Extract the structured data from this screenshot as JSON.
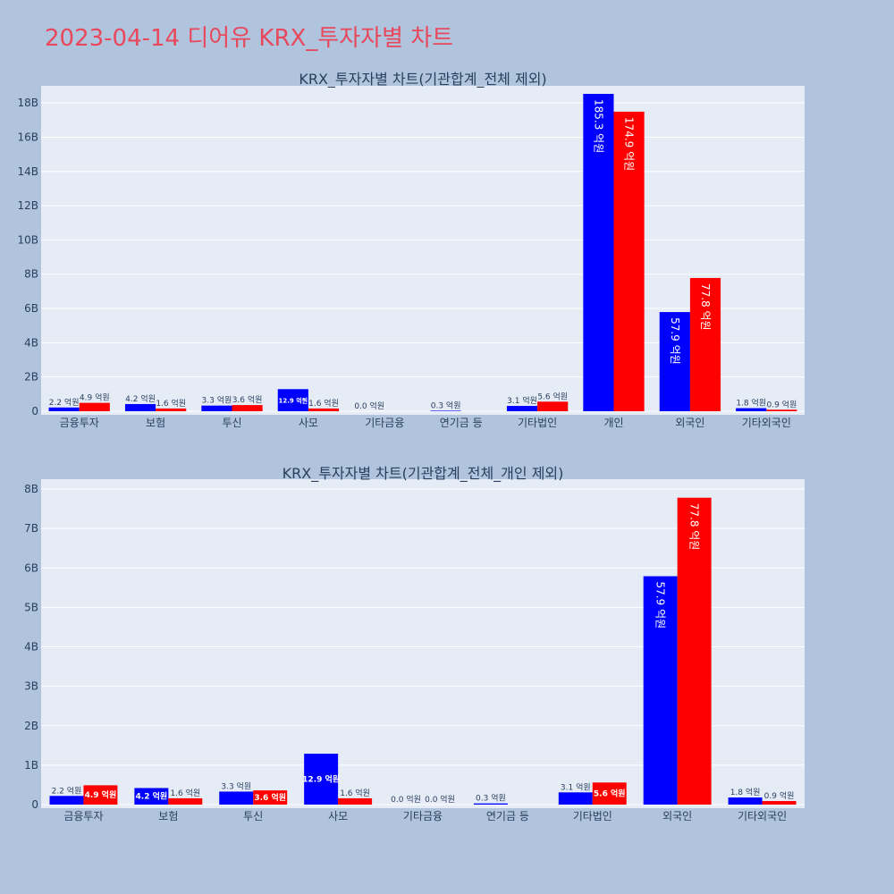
{
  "page": {
    "title": "2023-04-14 디어유 KRX_투자자별 차트",
    "title_color": "#e8485b",
    "background": "#b0c4de",
    "plot_background": "#e5ecf6"
  },
  "chart_data": [
    {
      "type": "bar",
      "title": "KRX_투자자별 차트(기관합계_전체 제외)",
      "categories": [
        "금융투자",
        "보험",
        "투신",
        "사모",
        "기타금융",
        "연기금 등",
        "기타법인",
        "개인",
        "외국인",
        "기타외국인"
      ],
      "ylim": [
        0,
        19.0
      ],
      "y_unit": "B",
      "y_ticks": [
        0,
        2,
        4,
        6,
        8,
        10,
        12,
        14,
        16,
        18
      ],
      "y_tick_labels": [
        "0",
        "2B",
        "4B",
        "6B",
        "8B",
        "10B",
        "12B",
        "14B",
        "16B",
        "18B"
      ],
      "grid": true,
      "series": [
        {
          "color": "#0000ff",
          "values": [
            0.22,
            0.42,
            0.33,
            1.29,
            0.0,
            0.03,
            0.31,
            18.53,
            5.79,
            0.18
          ],
          "labels": [
            "2.2 억원",
            "4.2 억원",
            "3.3 억원",
            "12.9 억원",
            "0.0 억원",
            "0.3 억원",
            "3.1 억원",
            "185.3 억원",
            "57.9 억원",
            "1.8 억원"
          ]
        },
        {
          "color": "#ff0000",
          "values": [
            0.49,
            0.16,
            0.36,
            0.16,
            0.0,
            0.0,
            0.56,
            17.49,
            7.78,
            0.09
          ],
          "labels": [
            "4.9 억원",
            "1.6 억원",
            "3.6 억원",
            "1.6 억원",
            "",
            "",
            "5.6 억원",
            "174.9 억원",
            "77.8 억원",
            "0.9 억원"
          ]
        }
      ]
    },
    {
      "type": "bar",
      "title": "KRX_투자자별 차트(기관합계_전체_개인 제외)",
      "categories": [
        "금융투자",
        "보험",
        "투신",
        "사모",
        "기타금융",
        "연기금 등",
        "기타법인",
        "외국인",
        "기타외국인"
      ],
      "ylim": [
        0,
        8.25
      ],
      "y_unit": "B",
      "y_ticks": [
        0,
        1,
        2,
        3,
        4,
        5,
        6,
        7,
        8
      ],
      "y_tick_labels": [
        "0",
        "1B",
        "2B",
        "3B",
        "4B",
        "5B",
        "6B",
        "7B",
        "8B"
      ],
      "grid": true,
      "series": [
        {
          "color": "#0000ff",
          "values": [
            0.22,
            0.42,
            0.33,
            1.29,
            0.0,
            0.03,
            0.31,
            5.79,
            0.18
          ],
          "labels": [
            "2.2 억원",
            "4.2 억원",
            "3.3 억원",
            "12.9 억원",
            "0.0 억원",
            "0.3 억원",
            "3.1 억원",
            "57.9 억원",
            "1.8 억원"
          ]
        },
        {
          "color": "#ff0000",
          "values": [
            0.49,
            0.16,
            0.36,
            0.16,
            0.0,
            0.0,
            0.56,
            7.78,
            0.09
          ],
          "labels": [
            "4.9 억원",
            "1.6 억원",
            "3.6 억원",
            "1.6 억원",
            "0.0 억원",
            "",
            "5.6 억원",
            "77.8 억원",
            "0.9 억원"
          ]
        }
      ]
    }
  ]
}
